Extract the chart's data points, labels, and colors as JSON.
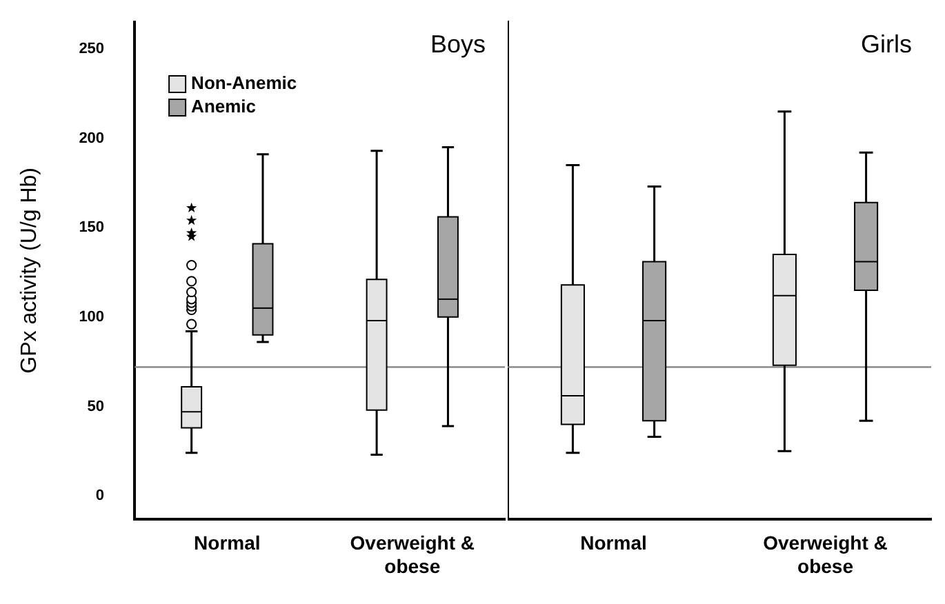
{
  "chart_data": [
    {
      "type": "box",
      "title": "Boys",
      "ylabel": "GPx activity (U/g Hb)",
      "categories": [
        "Normal",
        "Overweight & obese"
      ],
      "ylim": [
        -13,
        265
      ],
      "yticks": [
        0,
        50,
        100,
        150,
        200,
        250
      ],
      "grid": false,
      "legend": "top left",
      "ref_lines": [
        {
          "axis": "y",
          "value": 72,
          "color": "#808080"
        }
      ],
      "series": [
        {
          "name": "Non-Anemic",
          "color": "#e4e4e4",
          "boxes": [
            {
              "low": 24,
              "q1": 38,
              "median": 47,
              "q3": 61,
              "high": 92,
              "outliers": [
                96,
                104,
                106,
                108,
                110,
                114,
                120,
                129,
                145,
                147,
                154,
                161
              ]
            },
            {
              "low": 23,
              "q1": 48,
              "median": 98,
              "q3": 121,
              "high": 193
            }
          ]
        },
        {
          "name": "Anemic",
          "color": "#a6a6a6",
          "boxes": [
            {
              "low": 86,
              "q1": 90,
              "median": 105,
              "q3": 141,
              "high": 191
            },
            {
              "low": 39,
              "q1": 100,
              "median": 110,
              "q3": 156,
              "high": 195
            }
          ]
        }
      ]
    },
    {
      "type": "box",
      "title": "Girls",
      "categories": [
        "Normal",
        "Overweight & obese"
      ],
      "ylim": [
        -13,
        265
      ],
      "grid": false,
      "tick_labels": "x",
      "ref_lines": [
        {
          "axis": "y",
          "value": 72,
          "color": "#808080"
        }
      ],
      "series": [
        {
          "color": "#e4e4e4",
          "boxes": [
            {
              "low": 24,
              "q1": 40,
              "median": 56,
              "q3": 118,
              "high": 185
            },
            {
              "low": 25,
              "q1": 73,
              "median": 112,
              "q3": 135,
              "high": 215
            }
          ]
        },
        {
          "color": "#a6a6a6",
          "boxes": [
            {
              "low": 33,
              "q1": 42,
              "median": 98,
              "q3": 131,
              "high": 173
            },
            {
              "low": 42,
              "q1": 115,
              "median": 131,
              "q3": 164,
              "high": 192
            }
          ]
        }
      ]
    }
  ]
}
